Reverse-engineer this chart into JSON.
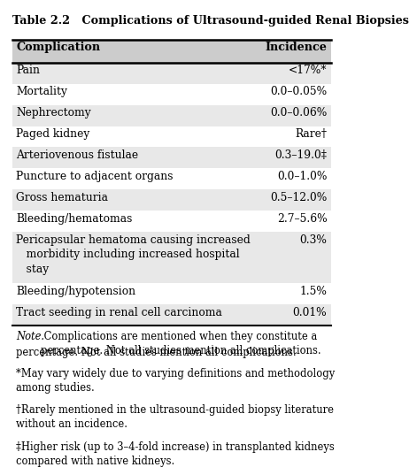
{
  "title": "Table 2.2   Complications of Ultrasound-guided Renal Biopsies",
  "header": [
    "Complication",
    "Incidence"
  ],
  "rows": [
    [
      "Pain",
      "<17%*"
    ],
    [
      "Mortality",
      "0.0–0.05%"
    ],
    [
      "Nephrectomy",
      "0.0–0.06%"
    ],
    [
      "Paged kidney",
      "Rare†"
    ],
    [
      "Arteriovenous fistulae",
      "0.3–19.0‡"
    ],
    [
      "Puncture to adjacent organs",
      "0.0–1.0%"
    ],
    [
      "Gross hematuria",
      "0.5–12.0%"
    ],
    [
      "Bleeding/hematomas",
      "2.7–5.6%"
    ],
    [
      "Pericapsular hematoma causing increased\n   morbidity including increased hospital\n   stay",
      "0.3%"
    ],
    [
      "Bleeding/hypotension",
      "1.5%"
    ],
    [
      "Tract seeding in renal cell carcinoma",
      "0.01%"
    ]
  ],
  "footnotes": [
    "Note. Complications are mentioned when they constitute a\npercentage. Not all studies mention all complications.",
    "*May vary widely due to varying definitions and methodology\namong studies.",
    "†Rarely mentioned in the ultrasound-guided biopsy literature\nwithout an incidence.",
    "‡Higher risk (up to 3–4-fold increase) in transplanted kidneys\ncompared with native kidneys."
  ],
  "title_fontsize": 9.2,
  "header_fontsize": 9.2,
  "row_fontsize": 8.8,
  "footnote_fontsize": 8.3,
  "fig_width": 4.74,
  "fig_height": 5.98
}
